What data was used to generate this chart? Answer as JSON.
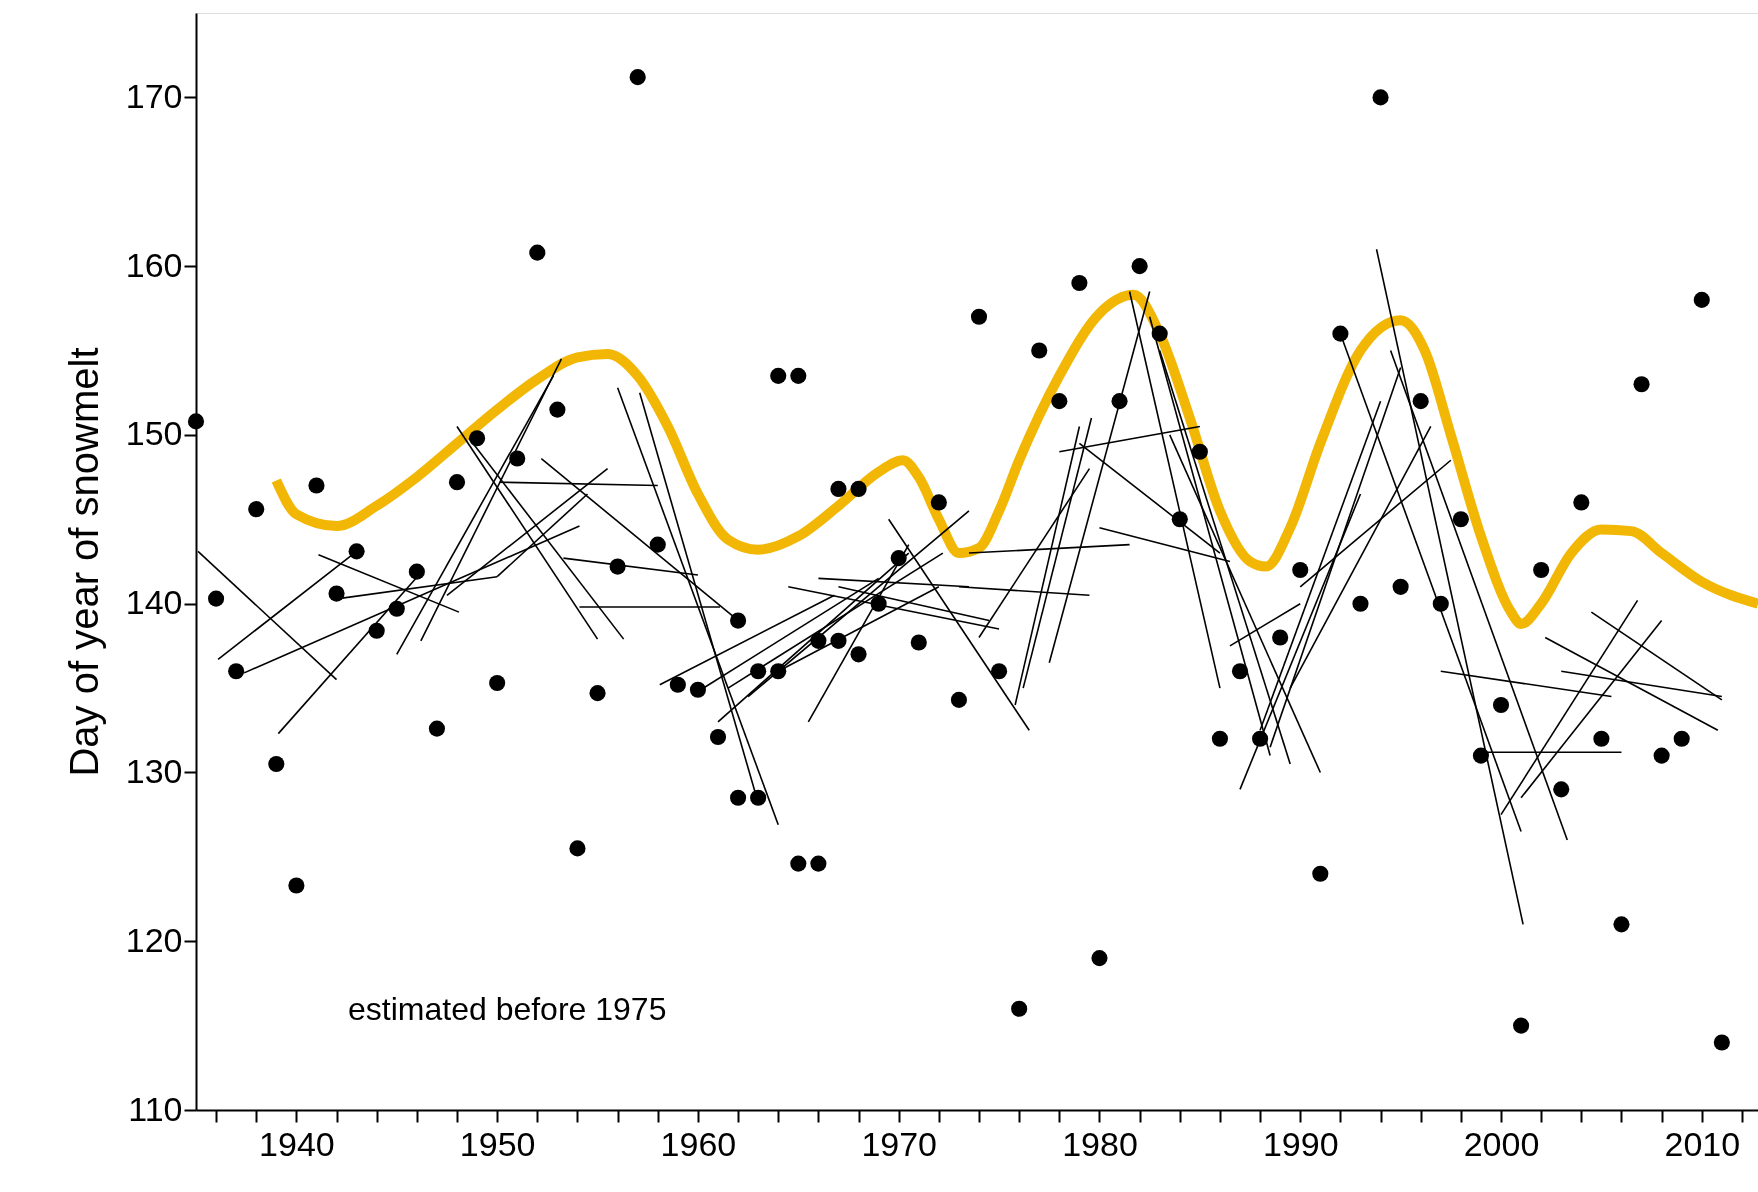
{
  "chart_data": {
    "type": "scatter",
    "ylabel": "Day of year of snowmelt",
    "xlim": [
      1935,
      2012.8
    ],
    "ylim": [
      110,
      175
    ],
    "xticks": [
      {
        "value": 1936,
        "label": null
      },
      {
        "value": 1938,
        "label": null
      },
      1940,
      {
        "value": 1942,
        "label": null
      },
      {
        "value": 1944,
        "label": null
      },
      {
        "value": 1946,
        "label": null
      },
      {
        "value": 1948,
        "label": null
      },
      1950,
      {
        "value": 1952,
        "label": null
      },
      {
        "value": 1954,
        "label": null
      },
      {
        "value": 1956,
        "label": null
      },
      {
        "value": 1958,
        "label": null
      },
      1960,
      {
        "value": 1962,
        "label": null
      },
      {
        "value": 1964,
        "label": null
      },
      {
        "value": 1966,
        "label": null
      },
      {
        "value": 1968,
        "label": null
      },
      1970,
      {
        "value": 1972,
        "label": null
      },
      {
        "value": 1974,
        "label": null
      },
      {
        "value": 1976,
        "label": null
      },
      {
        "value": 1978,
        "label": null
      },
      1980,
      {
        "value": 1982,
        "label": null
      },
      {
        "value": 1984,
        "label": null
      },
      {
        "value": 1986,
        "label": null
      },
      {
        "value": 1988,
        "label": null
      },
      1990,
      {
        "value": 1992,
        "label": null
      },
      {
        "value": 1994,
        "label": null
      },
      {
        "value": 1996,
        "label": null
      },
      {
        "value": 1998,
        "label": null
      },
      2000,
      {
        "value": 2002,
        "label": null
      },
      {
        "value": 2004,
        "label": null
      },
      {
        "value": 2006,
        "label": null
      },
      {
        "value": 2008,
        "label": null
      },
      2010,
      {
        "value": 2012,
        "label": null
      }
    ],
    "yticks": [
      110,
      120,
      130,
      140,
      150,
      160,
      170
    ],
    "grid": false,
    "annotations": [
      "estimated before 1975"
    ],
    "series": [
      {
        "type": "line",
        "color": "#f2b705",
        "x": [
          1939,
          1940,
          1942,
          1944,
          1946,
          1948,
          1950,
          1952,
          1954,
          1955.5,
          1957,
          1958.5,
          1960,
          1961.5,
          1963,
          1965,
          1967,
          1969,
          1970.2,
          1971,
          1972,
          1973,
          1974,
          1975,
          1976,
          1978,
          1980,
          1981.7,
          1983,
          1984.5,
          1986,
          1987.5,
          1988.3,
          1989.5,
          1991,
          1993,
          1995,
          1996.2,
          1997.5,
          1999,
          2000.5,
          2001,
          2002,
          2003.5,
          2005,
          2006.5,
          2008,
          2010,
          2012.8
        ],
        "values": [
          147.3,
          145.3,
          144.6,
          145.8,
          147.5,
          149.5,
          151.5,
          153.3,
          154.6,
          154.8,
          153.5,
          150.5,
          146.5,
          143.8,
          143.2,
          144,
          145.8,
          147.8,
          148.5,
          147.5,
          145,
          143,
          143.3,
          145.5,
          148.5,
          153.5,
          157.2,
          158.3,
          156,
          151,
          145.5,
          142.5,
          142.2,
          144.5,
          149.5,
          155,
          156.8,
          155,
          150,
          144,
          139.5,
          138.8,
          140,
          143,
          144.4,
          144.3,
          143,
          141.3,
          140
        ]
      },
      {
        "type": "line",
        "color": "#000000",
        "x": [
          1935.1,
          1942.0
        ],
        "values": [
          143.1,
          135.5
        ]
      },
      {
        "type": "line",
        "color": "#000000",
        "x": [
          1936.1,
          1943.0
        ],
        "values": [
          136.7,
          143.1
        ]
      },
      {
        "type": "line",
        "color": "#000000",
        "x": [
          1937.4,
          1954.1
        ],
        "values": [
          135.9,
          144.6
        ]
      },
      {
        "type": "line",
        "color": "#000000",
        "x": [
          1939.1,
          1946.1
        ],
        "values": [
          132.3,
          141.7
        ]
      },
      {
        "type": "line",
        "color": "#000000",
        "x": [
          1941.1,
          1948.1
        ],
        "values": [
          142.9,
          139.5
        ]
      },
      {
        "type": "line",
        "color": "#000000",
        "x": [
          1942.1,
          1950.0
        ],
        "values": [
          140.3,
          141.6
        ]
      },
      {
        "type": "line",
        "color": "#000000",
        "x": [
          1950.0,
          1954.5
        ],
        "values": [
          141.6,
          146.5
        ]
      },
      {
        "type": "line",
        "color": "#000000",
        "x": [
          1945.0,
          1952.8
        ],
        "values": [
          137.0,
          153.5
        ]
      },
      {
        "type": "line",
        "color": "#000000",
        "x": [
          1946.2,
          1953.2
        ],
        "values": [
          137.8,
          154.5
        ]
      },
      {
        "type": "line",
        "color": "#000000",
        "x": [
          1947.5,
          1955.5
        ],
        "values": [
          140.5,
          148.0
        ]
      },
      {
        "type": "line",
        "color": "#000000",
        "x": [
          1948.0,
          1955.0
        ],
        "values": [
          150.5,
          137.9
        ]
      },
      {
        "type": "line",
        "color": "#000000",
        "x": [
          1948.6,
          1956.3
        ],
        "values": [
          149.8,
          137.9
        ]
      },
      {
        "type": "line",
        "color": "#000000",
        "x": [
          1950.1,
          1958.0
        ],
        "values": [
          147.2,
          147.0
        ]
      },
      {
        "type": "line",
        "color": "#000000",
        "x": [
          1952.2,
          1961.8
        ],
        "values": [
          148.6,
          139.2
        ]
      },
      {
        "type": "line",
        "color": "#000000",
        "x": [
          1953.3,
          1960.0
        ],
        "values": [
          142.7,
          141.7
        ]
      },
      {
        "type": "line",
        "color": "#000000",
        "x": [
          1954.1,
          1961.1
        ],
        "values": [
          139.8,
          139.8
        ]
      },
      {
        "type": "line",
        "color": "#000000",
        "x": [
          1956.0,
          1964.0
        ],
        "values": [
          152.8,
          126.9
        ]
      },
      {
        "type": "line",
        "color": "#000000",
        "x": [
          1957.1,
          1963.0
        ],
        "values": [
          152.5,
          128.2
        ]
      },
      {
        "type": "line",
        "color": "#000000",
        "x": [
          1958.1,
          1966.8
        ],
        "values": [
          135.2,
          140.5
        ]
      },
      {
        "type": "line",
        "color": "#000000",
        "x": [
          1960.0,
          1969.0
        ],
        "values": [
          134.8,
          141.5
        ]
      },
      {
        "type": "line",
        "color": "#000000",
        "x": [
          1961.0,
          1970.5
        ],
        "values": [
          133.0,
          143.0
        ]
      },
      {
        "type": "line",
        "color": "#000000",
        "x": [
          1961.5,
          1972.2
        ],
        "values": [
          135.0,
          143.0
        ]
      },
      {
        "type": "line",
        "color": "#000000",
        "x": [
          1962.5,
          1973.5
        ],
        "values": [
          134.5,
          145.5
        ]
      },
      {
        "type": "line",
        "color": "#000000",
        "x": [
          1964.0,
          1972.0
        ],
        "values": [
          136.0,
          141.0
        ]
      },
      {
        "type": "line",
        "color": "#000000",
        "x": [
          1965.5,
          1970.5
        ],
        "values": [
          133.0,
          143.5
        ]
      },
      {
        "type": "line",
        "color": "#000000",
        "x": [
          1964.5,
          1975.0
        ],
        "values": [
          141.0,
          138.5
        ]
      },
      {
        "type": "line",
        "color": "#000000",
        "x": [
          1967.0,
          1974.5
        ],
        "values": [
          141.0,
          139.0
        ]
      },
      {
        "type": "line",
        "color": "#000000",
        "x": [
          1969.5,
          1976.5
        ],
        "values": [
          145.0,
          132.5
        ]
      },
      {
        "type": "line",
        "color": "#000000",
        "x": [
          1966.0,
          1973.5
        ],
        "values": [
          141.5,
          141.0
        ]
      },
      {
        "type": "line",
        "color": "#000000",
        "x": [
          1973.0,
          1979.5
        ],
        "values": [
          141.0,
          140.5
        ]
      },
      {
        "type": "line",
        "color": "#000000",
        "x": [
          1973.5,
          1981.5
        ],
        "values": [
          143.0,
          143.5
        ]
      },
      {
        "type": "line",
        "color": "#000000",
        "x": [
          1974.0,
          1979.5
        ],
        "values": [
          138.0,
          148.0
        ]
      },
      {
        "type": "line",
        "color": "#000000",
        "x": [
          1975.8,
          1979.0
        ],
        "values": [
          134.0,
          150.5
        ]
      },
      {
        "type": "line",
        "color": "#000000",
        "x": [
          1976.2,
          1979.6
        ],
        "values": [
          135.0,
          151.0
        ]
      },
      {
        "type": "line",
        "color": "#000000",
        "x": [
          1978.0,
          1985.0
        ],
        "values": [
          149.0,
          150.5
        ]
      },
      {
        "type": "line",
        "color": "#000000",
        "x": [
          1980.0,
          1986.5
        ],
        "values": [
          144.5,
          142.5
        ]
      },
      {
        "type": "line",
        "color": "#000000",
        "x": [
          1979.0,
          1986.0
        ],
        "values": [
          149.5,
          143.0
        ]
      },
      {
        "type": "line",
        "color": "#000000",
        "x": [
          1977.5,
          1982.5
        ],
        "values": [
          136.5,
          158.5
        ]
      },
      {
        "type": "line",
        "color": "#000000",
        "x": [
          1981.5,
          1986.0
        ],
        "values": [
          158.5,
          135.0
        ]
      },
      {
        "type": "line",
        "color": "#000000",
        "x": [
          1982.5,
          1988.5
        ],
        "values": [
          157.0,
          131.0
        ]
      },
      {
        "type": "line",
        "color": "#000000",
        "x": [
          1983.0,
          1989.5
        ],
        "values": [
          155.0,
          130.5
        ]
      },
      {
        "type": "line",
        "color": "#000000",
        "x": [
          1983.5,
          1991.0
        ],
        "values": [
          150.0,
          130.0
        ]
      },
      {
        "type": "line",
        "color": "#000000",
        "x": [
          1986.5,
          1990.0
        ],
        "values": [
          137.5,
          140.0
        ]
      },
      {
        "type": "line",
        "color": "#000000",
        "x": [
          1987.0,
          1993.0
        ],
        "values": [
          129.0,
          146.5
        ]
      },
      {
        "type": "line",
        "color": "#000000",
        "x": [
          1988.0,
          1994.0
        ],
        "values": [
          132.5,
          152.0
        ]
      },
      {
        "type": "line",
        "color": "#000000",
        "x": [
          1988.5,
          1995.0
        ],
        "values": [
          131.5,
          154.0
        ]
      },
      {
        "type": "line",
        "color": "#000000",
        "x": [
          1989.5,
          1996.5
        ],
        "values": [
          135.0,
          150.5
        ]
      },
      {
        "type": "line",
        "color": "#000000",
        "x": [
          1990.0,
          1997.5
        ],
        "values": [
          141.0,
          148.5
        ]
      },
      {
        "type": "line",
        "color": "#000000",
        "x": [
          1992.0,
          2001.0
        ],
        "values": [
          156.0,
          126.5
        ]
      },
      {
        "type": "line",
        "color": "#000000",
        "x": [
          1993.8,
          2001.1
        ],
        "values": [
          161.0,
          121.0
        ]
      },
      {
        "type": "line",
        "color": "#000000",
        "x": [
          1994.5,
          2003.3
        ],
        "values": [
          155.0,
          126.0
        ]
      },
      {
        "type": "line",
        "color": "#000000",
        "x": [
          1997.0,
          2005.5
        ],
        "values": [
          136.0,
          134.5
        ]
      },
      {
        "type": "line",
        "color": "#000000",
        "x": [
          1999.0,
          2006.0
        ],
        "values": [
          131.2,
          131.2
        ]
      },
      {
        "type": "line",
        "color": "#000000",
        "x": [
          2000.0,
          2006.8
        ],
        "values": [
          127.5,
          140.2
        ]
      },
      {
        "type": "line",
        "color": "#000000",
        "x": [
          2001.0,
          2008.0
        ],
        "values": [
          128.5,
          139.0
        ]
      },
      {
        "type": "line",
        "color": "#000000",
        "x": [
          2002.2,
          2010.8
        ],
        "values": [
          138.0,
          132.5
        ]
      },
      {
        "type": "line",
        "color": "#000000",
        "x": [
          2003.0,
          2011.0
        ],
        "values": [
          136.0,
          134.5
        ]
      },
      {
        "type": "line",
        "color": "#000000",
        "x": [
          2004.5,
          2011.0
        ],
        "values": [
          139.5,
          134.3
        ]
      },
      {
        "marker": "circle",
        "color": "#000000",
        "x": [
          1935,
          1936,
          1937,
          1938,
          1939,
          1940,
          1941,
          1942,
          1943,
          1944,
          1945,
          1946,
          1947,
          1948,
          1949,
          1950,
          1951,
          1952,
          1953,
          1954,
          1955,
          1956,
          1957,
          1958,
          1959,
          1960,
          1961,
          1962,
          1962,
          1963,
          1963,
          1964,
          1964,
          1965,
          1965,
          1966,
          1966,
          1967,
          1967,
          1968,
          1968,
          1969,
          1970,
          1971,
          1972,
          1973,
          1974,
          1975,
          1976,
          1977,
          1978,
          1979,
          1980,
          1981,
          1982,
          1983,
          1984,
          1985,
          1986,
          1987,
          1988,
          1989,
          1990,
          1991,
          1992,
          1993,
          1994,
          1995,
          1996,
          1997,
          1998,
          1999,
          2000,
          2001,
          2002,
          2003,
          2004,
          2005,
          2006,
          2007,
          2008,
          2009,
          2010,
          2011
        ],
        "values": [
          150.8,
          140.3,
          136,
          145.6,
          130.5,
          123.3,
          147,
          140.6,
          143.1,
          138.4,
          139.7,
          141.9,
          132.6,
          147.2,
          149.8,
          135.3,
          148.6,
          160.8,
          151.5,
          125.5,
          134.7,
          142.2,
          171.2,
          143.5,
          135.2,
          134.9,
          132.1,
          139,
          128.5,
          128.5,
          136,
          153.5,
          136,
          153.5,
          124.6,
          124.6,
          137.8,
          146.8,
          137.8,
          146.8,
          137,
          140,
          142.7,
          137.7,
          146,
          134.3,
          157,
          136,
          116,
          155,
          152,
          159,
          119,
          152,
          160,
          156,
          145,
          149,
          132,
          136,
          132,
          138,
          142,
          124,
          156,
          140,
          170,
          141,
          152,
          140,
          145,
          131,
          134,
          115,
          142,
          129,
          146,
          132,
          121,
          153,
          131,
          132,
          158,
          114
        ]
      }
    ]
  }
}
